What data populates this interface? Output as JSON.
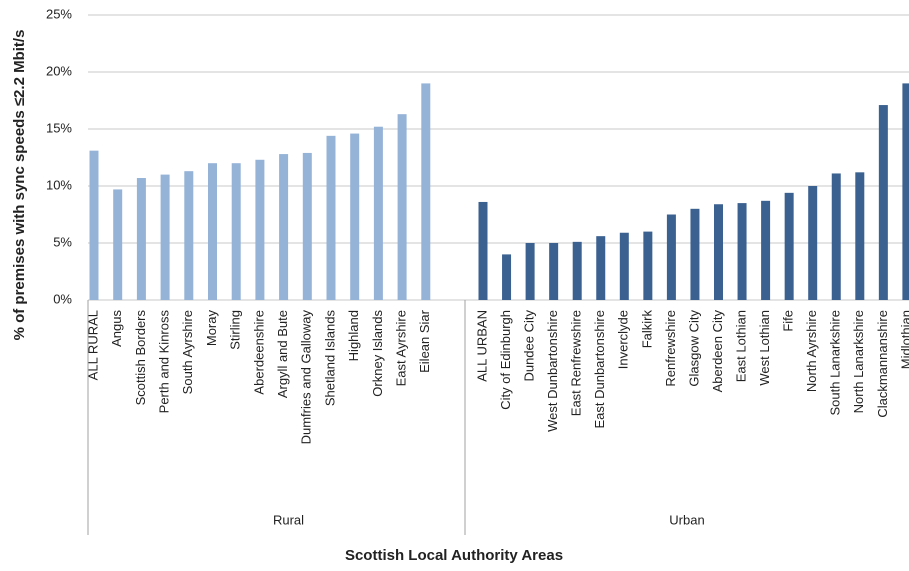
{
  "chart_data": {
    "type": "bar",
    "y_label": "% of premises with sync speeds ≤2.2 Mbit/s",
    "x_label": "Scottish Local Authority Areas",
    "ylim": [
      0,
      25
    ],
    "yticks": [
      {
        "value": 0,
        "label": "0%"
      },
      {
        "value": 5,
        "label": "5%"
      },
      {
        "value": 10,
        "label": "10%"
      },
      {
        "value": 15,
        "label": "15%"
      },
      {
        "value": 20,
        "label": "20%"
      },
      {
        "value": 25,
        "label": "25%"
      }
    ],
    "grid": true,
    "groups": [
      {
        "name": "Rural",
        "color": "#95b3d7",
        "categories": [
          "ALL RURAL",
          "Angus",
          "Scottish Borders",
          "Perth and Kinross",
          "South Ayrshire",
          "Moray",
          "Stirling",
          "Aberdeenshire",
          "Argyll and Bute",
          "Dumfries and Galloway",
          "Shetland Islands",
          "Highland",
          "Orkney Islands",
          "East Ayrshire",
          "Eilean Siar"
        ],
        "values": [
          13.1,
          9.7,
          10.7,
          11.0,
          11.3,
          12.0,
          12.0,
          12.3,
          12.8,
          12.9,
          14.4,
          14.6,
          15.2,
          16.3,
          19.0
        ]
      },
      {
        "name": "Urban",
        "color": "#3b6190",
        "categories": [
          "ALL URBAN",
          "City of Edinburgh",
          "Dundee City",
          "West Dunbartonshire",
          "East Renfrewshire",
          "East Dunbartonshire",
          "Inverclyde",
          "Falkirk",
          "Renfrewshire",
          "Glasgow City",
          "Aberdeen City",
          "East Lothian",
          "West Lothian",
          "Fife",
          "North Ayrshire",
          "South Lanarkshire",
          "North Lanarkshire",
          "Clackmannanshire",
          "Midlothian"
        ],
        "values": [
          8.6,
          4.0,
          5.0,
          5.0,
          5.1,
          5.6,
          5.9,
          6.0,
          7.5,
          8.0,
          8.4,
          8.5,
          8.7,
          9.4,
          10.0,
          11.1,
          11.2,
          17.1,
          19.0
        ]
      }
    ]
  }
}
